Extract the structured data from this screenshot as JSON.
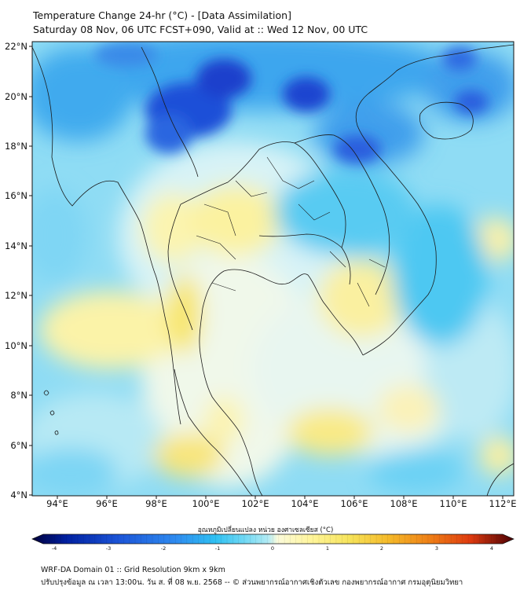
{
  "header": {
    "title_line1": "Temperature Change 24-hr (°C) - [Data Assimilation]",
    "title_line2": "Saturday 08 Nov, 06 UTC FCST+090, Valid at :: Wed 12 Nov, 00 UTC"
  },
  "map": {
    "lat_labels": [
      "22°N",
      "20°N",
      "18°N",
      "16°N",
      "14°N",
      "12°N",
      "10°N",
      "8°N",
      "6°N",
      "4°N"
    ],
    "lon_labels": [
      "94°E",
      "96°E",
      "98°E",
      "100°E",
      "102°E",
      "104°E",
      "106°E",
      "108°E",
      "110°E",
      "112°E"
    ],
    "field": "24-hr temperature change",
    "unit": "°C"
  },
  "colorbar": {
    "title": "อุณหภูมิเปลี่ยนแปลง หน่วย องศาเซลเซียส (°C)",
    "tick_labels": [
      "-4",
      "-3",
      "-2",
      "-1",
      "0",
      "1",
      "2",
      "3",
      "4"
    ],
    "range": [
      -4,
      4
    ],
    "colors": [
      "#00003c",
      "#0020a0",
      "#1c55d8",
      "#2f8cf0",
      "#2fc0f2",
      "#6fd8f4",
      "#b2ebf4",
      "#fbfbdb",
      "#fff59a",
      "#f6e35a",
      "#f5ba2a",
      "#ee7c16",
      "#de3a0f",
      "#a8120c",
      "#4a0004"
    ]
  },
  "footer": {
    "line1": "WRF-DA Domain 01 :: Grid Resolution 9km x 9km",
    "line2": "ปรับปรุงข้อมูล ณ เวลา 13:00น. วัน ส. ที่ 08 พ.ย. 2568 -- © ส่วนพยากรณ์อากาศเชิงตัวเลข กองพยากรณ์อากาศ กรมอุตุนิยมวิทยา"
  }
}
